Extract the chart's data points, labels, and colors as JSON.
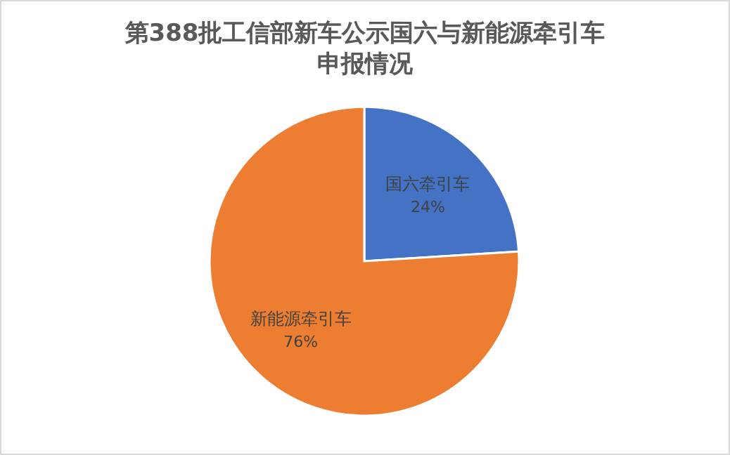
{
  "chart_data": {
    "type": "pie",
    "title": "第388批工信部新车公示国六与新能源牵引车申报情况",
    "categories": [
      "国六牵引车",
      "新能源牵引车"
    ],
    "values": [
      24,
      76
    ],
    "value_labels": [
      "24%",
      "76%"
    ],
    "colors": [
      "#4472c4",
      "#ed7d31"
    ]
  }
}
